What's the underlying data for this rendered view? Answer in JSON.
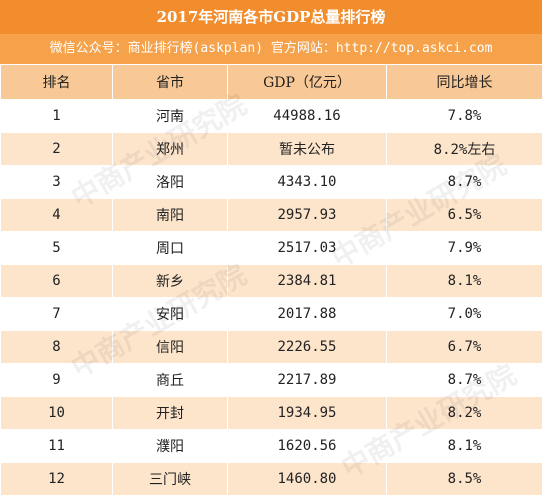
{
  "title": "2017年河南各市GDP总量排行榜",
  "source_line": "微信公众号：商业排行榜(askplan)  官方网站：http://top.askci.com",
  "watermark": "中商产业研究院",
  "table": {
    "headers": [
      "排名",
      "省市",
      "GDP（亿元）",
      "同比增长"
    ],
    "rows": [
      [
        "1",
        "河南",
        "44988.16",
        "7.8%"
      ],
      [
        "2",
        "郑州",
        "暂未公布",
        "8.2%左右"
      ],
      [
        "3",
        "洛阳",
        "4343.10",
        "8.7%"
      ],
      [
        "4",
        "南阳",
        "2957.93",
        "6.5%"
      ],
      [
        "5",
        "周口",
        "2517.03",
        "7.9%"
      ],
      [
        "6",
        "新乡",
        "2384.81",
        "8.1%"
      ],
      [
        "7",
        "安阳",
        "2017.88",
        "7.0%"
      ],
      [
        "8",
        "信阳",
        "2226.55",
        "6.7%"
      ],
      [
        "9",
        "商丘",
        "2217.89",
        "8.7%"
      ],
      [
        "10",
        "开封",
        "1934.95",
        "8.2%"
      ],
      [
        "11",
        "濮阳",
        "1620.56",
        "8.1%"
      ],
      [
        "12",
        "三门峡",
        "1460.80",
        "8.5%"
      ]
    ]
  },
  "colors": {
    "title_bg": "#f28d2e",
    "source_bg": "#f6a24a",
    "header_bg": "#f8c896",
    "stripe_bg": "#fde5cc"
  }
}
